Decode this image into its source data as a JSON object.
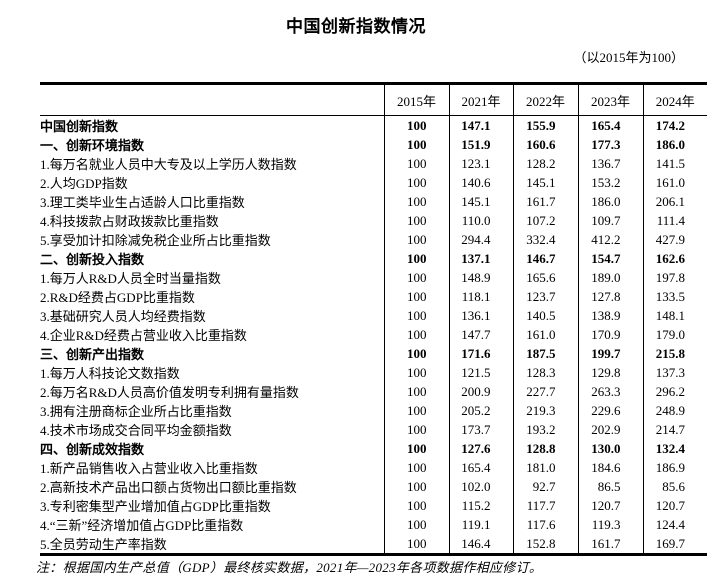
{
  "page": {
    "title": "中国创新指数情况",
    "subtitle": "（以2015年为100）",
    "footnote": "注：根据国内生产总值（GDP）最终核实数据，2021年—2023年各项数据作相应修订。"
  },
  "colors": {
    "text": "#000000",
    "border": "#000000",
    "background": "#ffffff"
  },
  "table": {
    "year_headers": [
      "2015年",
      "2021年",
      "2022年",
      "2023年",
      "2024年"
    ],
    "rows": [
      {
        "label": "中国创新指数",
        "level": 0,
        "bold": true,
        "values": [
          "100",
          "147.1",
          "155.9",
          "165.4",
          "174.2"
        ]
      },
      {
        "label": "一、创新环境指数",
        "level": 1,
        "bold": true,
        "values": [
          "100",
          "151.9",
          "160.6",
          "177.3",
          "186.0"
        ]
      },
      {
        "label": "1.每万名就业人员中大专及以上学历人数指数",
        "level": 2,
        "bold": false,
        "values": [
          "100",
          "123.1",
          "128.2",
          "136.7",
          "141.5"
        ]
      },
      {
        "label": "2.人均GDP指数",
        "level": 2,
        "bold": false,
        "values": [
          "100",
          "140.6",
          "145.1",
          "153.2",
          "161.0"
        ]
      },
      {
        "label": "3.理工类毕业生占适龄人口比重指数",
        "level": 2,
        "bold": false,
        "values": [
          "100",
          "145.1",
          "161.7",
          "186.0",
          "206.1"
        ]
      },
      {
        "label": "4.科技拨款占财政拨款比重指数",
        "level": 2,
        "bold": false,
        "values": [
          "100",
          "110.0",
          "107.2",
          "109.7",
          "111.4"
        ]
      },
      {
        "label": "5.享受加计扣除减免税企业所占比重指数",
        "level": 2,
        "bold": false,
        "values": [
          "100",
          "294.4",
          "332.4",
          "412.2",
          "427.9"
        ]
      },
      {
        "label": "二、创新投入指数",
        "level": 1,
        "bold": true,
        "values": [
          "100",
          "137.1",
          "146.7",
          "154.7",
          "162.6"
        ]
      },
      {
        "label": "1.每万人R&D人员全时当量指数",
        "level": 2,
        "bold": false,
        "values": [
          "100",
          "148.9",
          "165.6",
          "189.0",
          "197.8"
        ]
      },
      {
        "label": "2.R&D经费占GDP比重指数",
        "level": 2,
        "bold": false,
        "values": [
          "100",
          "118.1",
          "123.7",
          "127.8",
          "133.5"
        ]
      },
      {
        "label": "3.基础研究人员人均经费指数",
        "level": 2,
        "bold": false,
        "values": [
          "100",
          "136.1",
          "140.5",
          "138.9",
          "148.1"
        ]
      },
      {
        "label": "4.企业R&D经费占营业收入比重指数",
        "level": 2,
        "bold": false,
        "values": [
          "100",
          "147.7",
          "161.0",
          "170.9",
          "179.0"
        ]
      },
      {
        "label": "三、创新产出指数",
        "level": 1,
        "bold": true,
        "values": [
          "100",
          "171.6",
          "187.5",
          "199.7",
          "215.8"
        ]
      },
      {
        "label": "1.每万人科技论文数指数",
        "level": 2,
        "bold": false,
        "values": [
          "100",
          "121.5",
          "128.3",
          "129.8",
          "137.3"
        ]
      },
      {
        "label": "2.每万名R&D人员高价值发明专利拥有量指数",
        "level": 2,
        "bold": false,
        "values": [
          "100",
          "200.9",
          "227.7",
          "263.3",
          "296.2"
        ]
      },
      {
        "label": "3.拥有注册商标企业所占比重指数",
        "level": 2,
        "bold": false,
        "values": [
          "100",
          "205.2",
          "219.3",
          "229.6",
          "248.9"
        ]
      },
      {
        "label": "4.技术市场成交合同平均金额指数",
        "level": 2,
        "bold": false,
        "values": [
          "100",
          "173.7",
          "193.2",
          "202.9",
          "214.7"
        ]
      },
      {
        "label": "四、创新成效指数",
        "level": 1,
        "bold": true,
        "values": [
          "100",
          "127.6",
          "128.8",
          "130.0",
          "132.4"
        ]
      },
      {
        "label": "1.新产品销售收入占营业收入比重指数",
        "level": 2,
        "bold": false,
        "values": [
          "100",
          "165.4",
          "181.0",
          "184.6",
          "186.9"
        ]
      },
      {
        "label": "2.高新技术产品出口额占货物出口额比重指数",
        "level": 2,
        "bold": false,
        "values": [
          "100",
          "102.0",
          "92.7",
          "86.5",
          "85.6"
        ]
      },
      {
        "label": "3.专利密集型产业增加值占GDP比重指数",
        "level": 2,
        "bold": false,
        "values": [
          "100",
          "115.2",
          "117.7",
          "120.7",
          "120.7"
        ]
      },
      {
        "label": "4.“三新”经济增加值占GDP比重指数",
        "level": 2,
        "bold": false,
        "values": [
          "100",
          "119.1",
          "117.6",
          "119.3",
          "124.4"
        ]
      },
      {
        "label": "5.全员劳动生产率指数",
        "level": 2,
        "bold": false,
        "values": [
          "100",
          "146.4",
          "152.8",
          "161.7",
          "169.7"
        ]
      }
    ]
  }
}
